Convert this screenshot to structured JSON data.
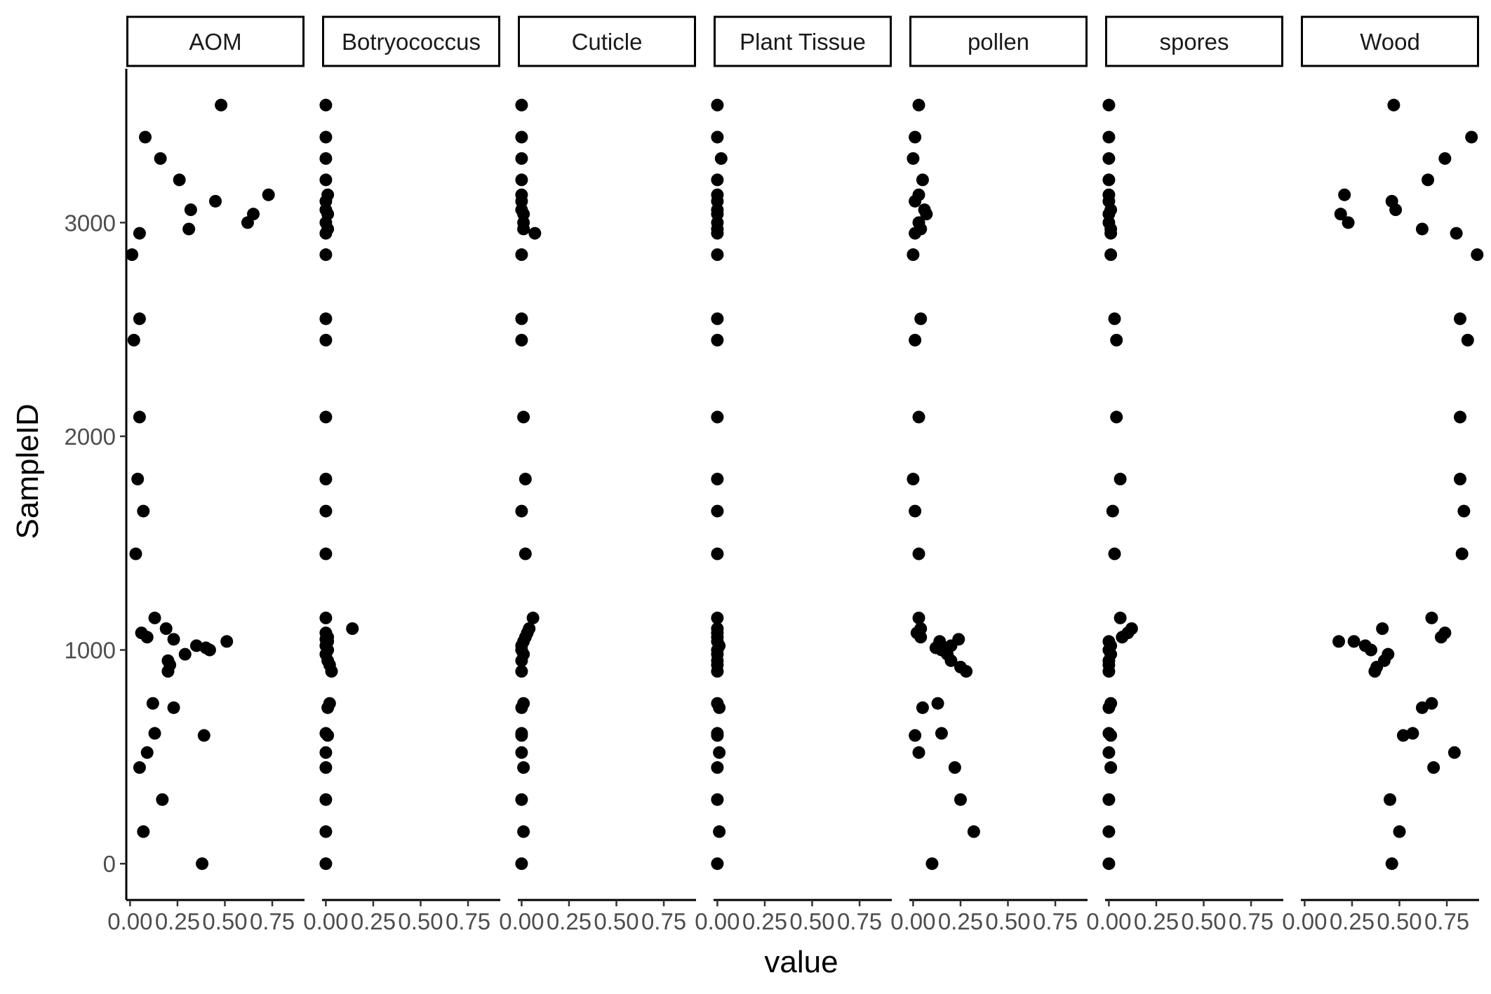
{
  "chart_data": {
    "type": "scatter",
    "facet_by": "variable",
    "xlabel": "value",
    "ylabel": "SampleID",
    "xlim": [
      -0.02,
      0.92
    ],
    "ylim": [
      -170,
      3720
    ],
    "x_ticks": [
      0,
      0.25,
      0.5,
      0.75
    ],
    "x_tick_labels": [
      "0.00",
      "0.25",
      "0.50",
      "0.75"
    ],
    "y_ticks": [
      0,
      1000,
      2000,
      3000
    ],
    "y_tick_labels": [
      "0",
      "1000",
      "2000",
      "3000"
    ],
    "grid": false,
    "legend": "none",
    "point_color": "#000000",
    "panels": [
      {
        "name": "AOM",
        "points": [
          {
            "x": 0.48,
            "y": 3550
          },
          {
            "x": 0.08,
            "y": 3400
          },
          {
            "x": 0.16,
            "y": 3300
          },
          {
            "x": 0.26,
            "y": 3200
          },
          {
            "x": 0.73,
            "y": 3130
          },
          {
            "x": 0.45,
            "y": 3100
          },
          {
            "x": 0.32,
            "y": 3060
          },
          {
            "x": 0.65,
            "y": 3040
          },
          {
            "x": 0.62,
            "y": 3000
          },
          {
            "x": 0.31,
            "y": 2970
          },
          {
            "x": 0.05,
            "y": 2950
          },
          {
            "x": 0.01,
            "y": 2850
          },
          {
            "x": 0.05,
            "y": 2550
          },
          {
            "x": 0.02,
            "y": 2450
          },
          {
            "x": 0.05,
            "y": 2090
          },
          {
            "x": 0.04,
            "y": 1800
          },
          {
            "x": 0.07,
            "y": 1650
          },
          {
            "x": 0.03,
            "y": 1450
          },
          {
            "x": 0.13,
            "y": 1150
          },
          {
            "x": 0.19,
            "y": 1100
          },
          {
            "x": 0.06,
            "y": 1080
          },
          {
            "x": 0.09,
            "y": 1060
          },
          {
            "x": 0.23,
            "y": 1050
          },
          {
            "x": 0.51,
            "y": 1040
          },
          {
            "x": 0.35,
            "y": 1020
          },
          {
            "x": 0.4,
            "y": 1010
          },
          {
            "x": 0.42,
            "y": 1000
          },
          {
            "x": 0.29,
            "y": 980
          },
          {
            "x": 0.2,
            "y": 950
          },
          {
            "x": 0.21,
            "y": 930
          },
          {
            "x": 0.2,
            "y": 900
          },
          {
            "x": 0.12,
            "y": 750
          },
          {
            "x": 0.23,
            "y": 730
          },
          {
            "x": 0.13,
            "y": 610
          },
          {
            "x": 0.39,
            "y": 600
          },
          {
            "x": 0.09,
            "y": 520
          },
          {
            "x": 0.05,
            "y": 450
          },
          {
            "x": 0.17,
            "y": 300
          },
          {
            "x": 0.07,
            "y": 150
          },
          {
            "x": 0.38,
            "y": 0
          }
        ]
      },
      {
        "name": "Botryococcus",
        "points": [
          {
            "x": 0.0,
            "y": 3550
          },
          {
            "x": 0.0,
            "y": 3400
          },
          {
            "x": 0.0,
            "y": 3300
          },
          {
            "x": 0.0,
            "y": 3200
          },
          {
            "x": 0.01,
            "y": 3130
          },
          {
            "x": 0.0,
            "y": 3100
          },
          {
            "x": 0.0,
            "y": 3060
          },
          {
            "x": 0.01,
            "y": 3040
          },
          {
            "x": 0.0,
            "y": 3000
          },
          {
            "x": 0.01,
            "y": 2970
          },
          {
            "x": 0.0,
            "y": 2950
          },
          {
            "x": 0.0,
            "y": 2850
          },
          {
            "x": 0.0,
            "y": 2550
          },
          {
            "x": 0.0,
            "y": 2450
          },
          {
            "x": 0.0,
            "y": 2090
          },
          {
            "x": 0.0,
            "y": 1800
          },
          {
            "x": 0.0,
            "y": 1650
          },
          {
            "x": 0.0,
            "y": 1450
          },
          {
            "x": 0.0,
            "y": 1150
          },
          {
            "x": 0.14,
            "y": 1100
          },
          {
            "x": 0.0,
            "y": 1080
          },
          {
            "x": 0.01,
            "y": 1060
          },
          {
            "x": 0.0,
            "y": 1050
          },
          {
            "x": 0.01,
            "y": 1040
          },
          {
            "x": 0.0,
            "y": 1020
          },
          {
            "x": 0.01,
            "y": 1000
          },
          {
            "x": 0.0,
            "y": 980
          },
          {
            "x": 0.01,
            "y": 950
          },
          {
            "x": 0.02,
            "y": 930
          },
          {
            "x": 0.03,
            "y": 900
          },
          {
            "x": 0.02,
            "y": 750
          },
          {
            "x": 0.01,
            "y": 730
          },
          {
            "x": 0.0,
            "y": 610
          },
          {
            "x": 0.01,
            "y": 600
          },
          {
            "x": 0.0,
            "y": 520
          },
          {
            "x": 0.0,
            "y": 450
          },
          {
            "x": 0.0,
            "y": 300
          },
          {
            "x": 0.0,
            "y": 150
          },
          {
            "x": 0.0,
            "y": 0
          }
        ]
      },
      {
        "name": "Cuticle",
        "points": [
          {
            "x": 0.0,
            "y": 3550
          },
          {
            "x": 0.0,
            "y": 3400
          },
          {
            "x": 0.0,
            "y": 3300
          },
          {
            "x": 0.0,
            "y": 3200
          },
          {
            "x": 0.0,
            "y": 3130
          },
          {
            "x": 0.0,
            "y": 3100
          },
          {
            "x": 0.0,
            "y": 3060
          },
          {
            "x": 0.01,
            "y": 3040
          },
          {
            "x": 0.01,
            "y": 3000
          },
          {
            "x": 0.01,
            "y": 2970
          },
          {
            "x": 0.07,
            "y": 2950
          },
          {
            "x": 0.0,
            "y": 2850
          },
          {
            "x": 0.0,
            "y": 2550
          },
          {
            "x": 0.0,
            "y": 2450
          },
          {
            "x": 0.01,
            "y": 2090
          },
          {
            "x": 0.02,
            "y": 1800
          },
          {
            "x": 0.0,
            "y": 1650
          },
          {
            "x": 0.02,
            "y": 1450
          },
          {
            "x": 0.06,
            "y": 1150
          },
          {
            "x": 0.04,
            "y": 1100
          },
          {
            "x": 0.03,
            "y": 1080
          },
          {
            "x": 0.02,
            "y": 1060
          },
          {
            "x": 0.01,
            "y": 1040
          },
          {
            "x": 0.0,
            "y": 1020
          },
          {
            "x": 0.0,
            "y": 1000
          },
          {
            "x": 0.01,
            "y": 980
          },
          {
            "x": 0.0,
            "y": 950
          },
          {
            "x": 0.0,
            "y": 900
          },
          {
            "x": 0.01,
            "y": 750
          },
          {
            "x": 0.0,
            "y": 730
          },
          {
            "x": 0.0,
            "y": 610
          },
          {
            "x": 0.0,
            "y": 600
          },
          {
            "x": 0.0,
            "y": 520
          },
          {
            "x": 0.01,
            "y": 450
          },
          {
            "x": 0.0,
            "y": 300
          },
          {
            "x": 0.01,
            "y": 150
          },
          {
            "x": 0.0,
            "y": 0
          }
        ]
      },
      {
        "name": "Plant Tissue",
        "points": [
          {
            "x": 0.0,
            "y": 3550
          },
          {
            "x": 0.0,
            "y": 3400
          },
          {
            "x": 0.02,
            "y": 3300
          },
          {
            "x": 0.0,
            "y": 3200
          },
          {
            "x": 0.0,
            "y": 3130
          },
          {
            "x": 0.0,
            "y": 3100
          },
          {
            "x": 0.0,
            "y": 3060
          },
          {
            "x": 0.0,
            "y": 3040
          },
          {
            "x": 0.0,
            "y": 3000
          },
          {
            "x": 0.0,
            "y": 2970
          },
          {
            "x": 0.0,
            "y": 2950
          },
          {
            "x": 0.0,
            "y": 2850
          },
          {
            "x": 0.0,
            "y": 2550
          },
          {
            "x": 0.0,
            "y": 2450
          },
          {
            "x": 0.0,
            "y": 2090
          },
          {
            "x": 0.0,
            "y": 1800
          },
          {
            "x": 0.0,
            "y": 1650
          },
          {
            "x": 0.0,
            "y": 1450
          },
          {
            "x": 0.0,
            "y": 1150
          },
          {
            "x": 0.0,
            "y": 1100
          },
          {
            "x": 0.0,
            "y": 1080
          },
          {
            "x": 0.0,
            "y": 1060
          },
          {
            "x": 0.0,
            "y": 1040
          },
          {
            "x": 0.01,
            "y": 1020
          },
          {
            "x": 0.0,
            "y": 1000
          },
          {
            "x": 0.0,
            "y": 980
          },
          {
            "x": 0.0,
            "y": 950
          },
          {
            "x": 0.0,
            "y": 930
          },
          {
            "x": 0.0,
            "y": 900
          },
          {
            "x": 0.0,
            "y": 750
          },
          {
            "x": 0.01,
            "y": 730
          },
          {
            "x": 0.0,
            "y": 610
          },
          {
            "x": 0.0,
            "y": 600
          },
          {
            "x": 0.01,
            "y": 520
          },
          {
            "x": 0.0,
            "y": 450
          },
          {
            "x": 0.0,
            "y": 300
          },
          {
            "x": 0.01,
            "y": 150
          },
          {
            "x": 0.0,
            "y": 0
          }
        ]
      },
      {
        "name": "pollen",
        "points": [
          {
            "x": 0.03,
            "y": 3550
          },
          {
            "x": 0.01,
            "y": 3400
          },
          {
            "x": 0.0,
            "y": 3300
          },
          {
            "x": 0.05,
            "y": 3200
          },
          {
            "x": 0.03,
            "y": 3130
          },
          {
            "x": 0.01,
            "y": 3100
          },
          {
            "x": 0.06,
            "y": 3060
          },
          {
            "x": 0.07,
            "y": 3040
          },
          {
            "x": 0.03,
            "y": 3000
          },
          {
            "x": 0.04,
            "y": 2970
          },
          {
            "x": 0.01,
            "y": 2950
          },
          {
            "x": 0.0,
            "y": 2850
          },
          {
            "x": 0.04,
            "y": 2550
          },
          {
            "x": 0.01,
            "y": 2450
          },
          {
            "x": 0.03,
            "y": 2090
          },
          {
            "x": 0.0,
            "y": 1800
          },
          {
            "x": 0.01,
            "y": 1650
          },
          {
            "x": 0.03,
            "y": 1450
          },
          {
            "x": 0.03,
            "y": 1150
          },
          {
            "x": 0.04,
            "y": 1100
          },
          {
            "x": 0.02,
            "y": 1080
          },
          {
            "x": 0.04,
            "y": 1060
          },
          {
            "x": 0.24,
            "y": 1050
          },
          {
            "x": 0.14,
            "y": 1040
          },
          {
            "x": 0.2,
            "y": 1020
          },
          {
            "x": 0.12,
            "y": 1010
          },
          {
            "x": 0.15,
            "y": 1000
          },
          {
            "x": 0.18,
            "y": 980
          },
          {
            "x": 0.2,
            "y": 950
          },
          {
            "x": 0.25,
            "y": 920
          },
          {
            "x": 0.28,
            "y": 900
          },
          {
            "x": 0.13,
            "y": 750
          },
          {
            "x": 0.05,
            "y": 730
          },
          {
            "x": 0.15,
            "y": 610
          },
          {
            "x": 0.01,
            "y": 600
          },
          {
            "x": 0.03,
            "y": 520
          },
          {
            "x": 0.22,
            "y": 450
          },
          {
            "x": 0.25,
            "y": 300
          },
          {
            "x": 0.32,
            "y": 150
          },
          {
            "x": 0.1,
            "y": 0
          }
        ]
      },
      {
        "name": "spores",
        "points": [
          {
            "x": 0.0,
            "y": 3550
          },
          {
            "x": 0.0,
            "y": 3400
          },
          {
            "x": 0.0,
            "y": 3300
          },
          {
            "x": 0.0,
            "y": 3200
          },
          {
            "x": 0.0,
            "y": 3130
          },
          {
            "x": 0.0,
            "y": 3100
          },
          {
            "x": 0.01,
            "y": 3060
          },
          {
            "x": 0.0,
            "y": 3040
          },
          {
            "x": 0.0,
            "y": 3000
          },
          {
            "x": 0.01,
            "y": 2970
          },
          {
            "x": 0.01,
            "y": 2950
          },
          {
            "x": 0.01,
            "y": 2850
          },
          {
            "x": 0.03,
            "y": 2550
          },
          {
            "x": 0.04,
            "y": 2450
          },
          {
            "x": 0.04,
            "y": 2090
          },
          {
            "x": 0.06,
            "y": 1800
          },
          {
            "x": 0.02,
            "y": 1650
          },
          {
            "x": 0.03,
            "y": 1450
          },
          {
            "x": 0.06,
            "y": 1150
          },
          {
            "x": 0.12,
            "y": 1100
          },
          {
            "x": 0.1,
            "y": 1080
          },
          {
            "x": 0.07,
            "y": 1060
          },
          {
            "x": 0.0,
            "y": 1040
          },
          {
            "x": 0.01,
            "y": 1020
          },
          {
            "x": 0.0,
            "y": 1000
          },
          {
            "x": 0.01,
            "y": 980
          },
          {
            "x": 0.0,
            "y": 950
          },
          {
            "x": 0.0,
            "y": 930
          },
          {
            "x": 0.0,
            "y": 900
          },
          {
            "x": 0.01,
            "y": 750
          },
          {
            "x": 0.0,
            "y": 730
          },
          {
            "x": 0.0,
            "y": 610
          },
          {
            "x": 0.01,
            "y": 600
          },
          {
            "x": 0.0,
            "y": 520
          },
          {
            "x": 0.01,
            "y": 450
          },
          {
            "x": 0.0,
            "y": 300
          },
          {
            "x": 0.0,
            "y": 150
          },
          {
            "x": 0.0,
            "y": 0
          }
        ]
      },
      {
        "name": "Wood",
        "points": [
          {
            "x": 0.47,
            "y": 3550
          },
          {
            "x": 0.88,
            "y": 3400
          },
          {
            "x": 0.74,
            "y": 3300
          },
          {
            "x": 0.65,
            "y": 3200
          },
          {
            "x": 0.21,
            "y": 3130
          },
          {
            "x": 0.46,
            "y": 3100
          },
          {
            "x": 0.48,
            "y": 3060
          },
          {
            "x": 0.19,
            "y": 3040
          },
          {
            "x": 0.23,
            "y": 3000
          },
          {
            "x": 0.62,
            "y": 2970
          },
          {
            "x": 0.8,
            "y": 2950
          },
          {
            "x": 0.91,
            "y": 2850
          },
          {
            "x": 0.82,
            "y": 2550
          },
          {
            "x": 0.86,
            "y": 2450
          },
          {
            "x": 0.82,
            "y": 2090
          },
          {
            "x": 0.82,
            "y": 1800
          },
          {
            "x": 0.84,
            "y": 1650
          },
          {
            "x": 0.83,
            "y": 1450
          },
          {
            "x": 0.67,
            "y": 1150
          },
          {
            "x": 0.41,
            "y": 1100
          },
          {
            "x": 0.74,
            "y": 1080
          },
          {
            "x": 0.72,
            "y": 1060
          },
          {
            "x": 0.18,
            "y": 1040
          },
          {
            "x": 0.26,
            "y": 1040
          },
          {
            "x": 0.32,
            "y": 1020
          },
          {
            "x": 0.35,
            "y": 1000
          },
          {
            "x": 0.44,
            "y": 980
          },
          {
            "x": 0.42,
            "y": 950
          },
          {
            "x": 0.38,
            "y": 920
          },
          {
            "x": 0.37,
            "y": 900
          },
          {
            "x": 0.67,
            "y": 750
          },
          {
            "x": 0.62,
            "y": 730
          },
          {
            "x": 0.57,
            "y": 610
          },
          {
            "x": 0.52,
            "y": 600
          },
          {
            "x": 0.79,
            "y": 520
          },
          {
            "x": 0.68,
            "y": 450
          },
          {
            "x": 0.45,
            "y": 300
          },
          {
            "x": 0.5,
            "y": 150
          },
          {
            "x": 0.46,
            "y": 0
          }
        ]
      }
    ]
  }
}
